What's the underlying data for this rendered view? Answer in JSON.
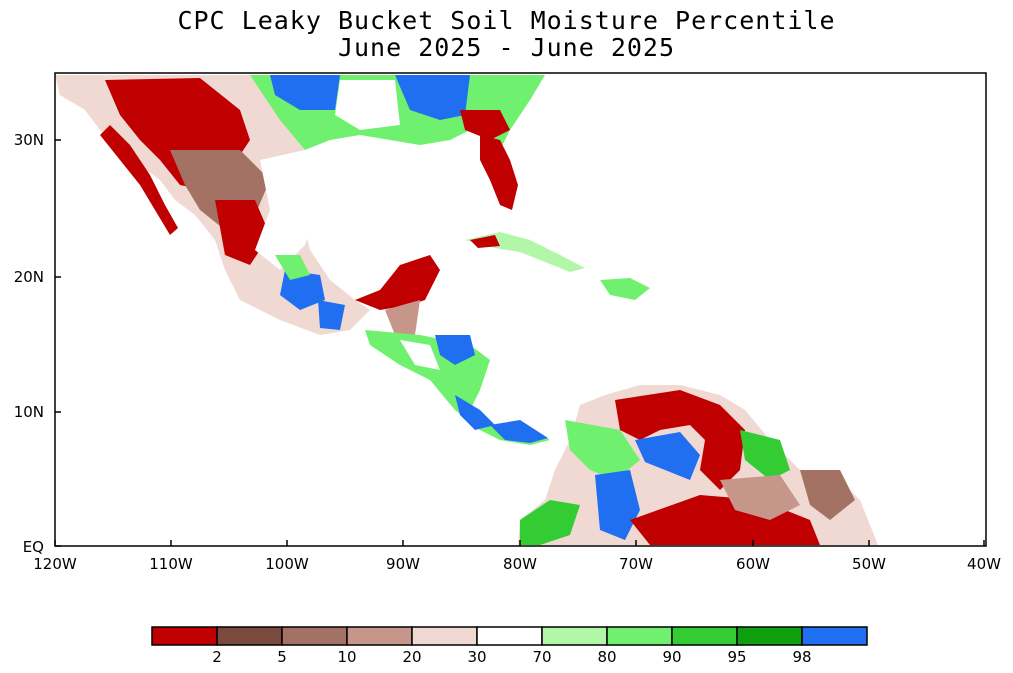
{
  "title_line1": "CPC Leaky Bucket Soil Moisture Percentile",
  "title_line2": "June 2025 - June 2025",
  "y_labels": [
    "30N",
    "20N",
    "10N",
    "EQ"
  ],
  "x_labels": [
    "120W",
    "110W",
    "100W",
    "90W",
    "80W",
    "70W",
    "60W",
    "50W",
    "40W"
  ],
  "legend": {
    "colors": [
      "#c00000",
      "#7b4a3e",
      "#a47265",
      "#c7968a",
      "#efd9d2",
      "#ffffff",
      "#b2f7a8",
      "#6ff06e",
      "#33cc33",
      "#0fa00f",
      "#1f6ff0"
    ],
    "labels": [
      "2",
      "5",
      "10",
      "20",
      "30",
      "70",
      "80",
      "90",
      "95",
      "98"
    ]
  },
  "colors": {
    "dry": "#c00000",
    "very_dry": "#7b4a3e",
    "mod_dry": "#a47265",
    "light_dry": "#c7968a",
    "near_normal_dry": "#efd9d2",
    "normal": "#ffffff",
    "light_wet": "#b2f7a8",
    "wet": "#6ff06e",
    "very_wet": "#33cc33",
    "wetter": "#0fa00f",
    "wettest": "#1f6ff0"
  }
}
